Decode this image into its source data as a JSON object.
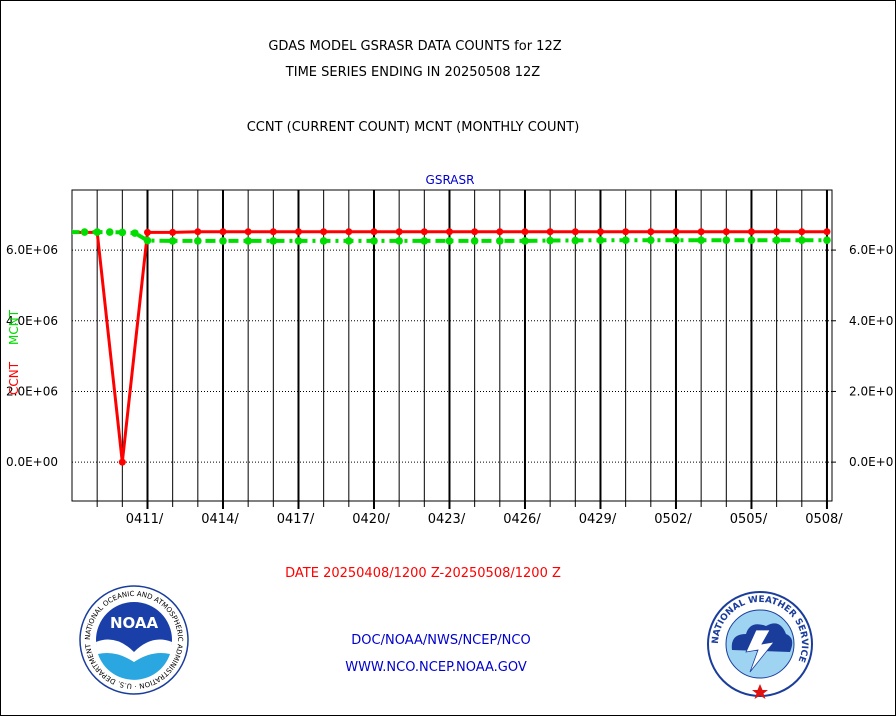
{
  "header": {
    "title_line1": "GDAS MODEL GSRASR DATA COUNTS for 12Z",
    "title_line2": "TIME SERIES ENDING IN 20250508 12Z",
    "subtitle": "CCNT (CURRENT COUNT) MCNT (MONTHLY COUNT)"
  },
  "footer": {
    "date_range": "DATE 20250408/1200 Z-20250508/1200 Z",
    "org_line1": "DOC/NOAA/NWS/NCEP/NCO",
    "org_line2": "WWW.NCO.NCEP.NOAA.GOV",
    "noaa_logo_text": "NOAA",
    "noaa_ring_text": "NATIONAL OCEANIC AND ATMOSPHERIC ADMINISTRATION · U.S. DEPARTMENT OF COMMERCE",
    "nws_ring_text": "NATIONAL WEATHER SERVICE"
  },
  "colors": {
    "ccnt": "#ff0000",
    "mcnt": "#00dd00",
    "panel_title": "#0000cc",
    "date_text": "#ff0000",
    "org_text": "#0000cc"
  },
  "chart_data": {
    "type": "line",
    "title": "GSRASR",
    "ylabel_ccnt": "CCNT",
    "ylabel_mcnt": "MCNT",
    "x_tick_labels": [
      "0411/",
      "0414/",
      "0417/",
      "0420/",
      "0423/",
      "0426/",
      "0429/",
      "0502/",
      "0505/",
      "0508/"
    ],
    "x_tick_days": [
      3,
      6,
      9,
      12,
      15,
      18,
      21,
      24,
      27,
      30
    ],
    "x_range_days": [
      0,
      30.2
    ],
    "y_left_labels": [
      "6.0E+06",
      "4.0E+06",
      "2.0E+06",
      "0.0E+00"
    ],
    "y_right_labels": [
      "6.0E+0",
      "4.0E+0",
      "2.0E+0",
      "0.0E+0"
    ],
    "y_ticks": [
      6000000,
      4000000,
      2000000,
      0
    ],
    "ylim": [
      -1100000,
      7700000
    ],
    "grid": true,
    "series": [
      {
        "name": "CCNT",
        "x": [
          -0.1,
          1,
          2,
          3,
          4,
          5,
          6,
          7,
          8,
          9,
          10,
          11,
          12,
          13,
          14,
          15,
          16,
          17,
          18,
          19,
          20,
          21,
          22,
          23,
          24,
          25,
          26,
          27,
          28,
          29,
          30
        ],
        "values": [
          6500000,
          6500000,
          0,
          6500000,
          6500000,
          6520000,
          6520000,
          6520000,
          6520000,
          6520000,
          6520000,
          6520000,
          6520000,
          6520000,
          6520000,
          6520000,
          6520000,
          6520000,
          6520000,
          6520000,
          6520000,
          6520000,
          6520000,
          6520000,
          6520000,
          6520000,
          6520000,
          6520000,
          6520000,
          6520000,
          6520000
        ]
      },
      {
        "name": "MCNT",
        "x": [
          -0.1,
          0.5,
          1,
          1.5,
          2,
          2.5,
          3,
          4,
          5,
          6,
          7,
          8,
          9,
          10,
          11,
          12,
          13,
          14,
          15,
          16,
          17,
          18,
          19,
          20,
          21,
          22,
          23,
          24,
          25,
          26,
          27,
          28,
          29,
          30
        ],
        "values": [
          6510000,
          6510000,
          6510000,
          6510000,
          6500000,
          6480000,
          6270000,
          6260000,
          6260000,
          6260000,
          6260000,
          6260000,
          6260000,
          6260000,
          6260000,
          6260000,
          6260000,
          6260000,
          6260000,
          6260000,
          6260000,
          6260000,
          6270000,
          6270000,
          6280000,
          6280000,
          6280000,
          6280000,
          6280000,
          6280000,
          6280000,
          6280000,
          6280000,
          6280000
        ]
      }
    ]
  }
}
